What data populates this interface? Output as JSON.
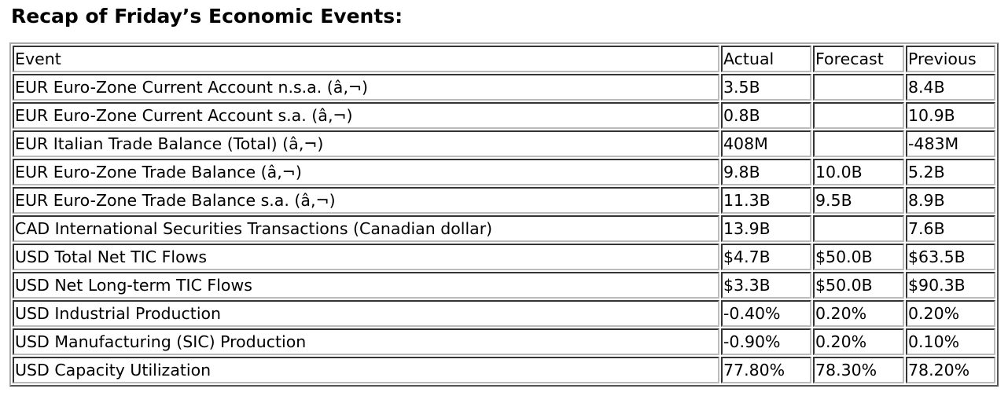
{
  "title": "Recap of Friday’s Economic Events:",
  "headers": {
    "event": "Event",
    "actual": "Actual",
    "forecast": "Forecast",
    "previous": "Previous"
  },
  "rows": [
    {
      "event": "EUR Euro-Zone Current Account n.s.a. (â‚¬)",
      "actual": "3.5B",
      "forecast": "",
      "previous": "8.4B"
    },
    {
      "event": "EUR Euro-Zone Current Account s.a. (â‚¬)",
      "actual": "0.8B",
      "forecast": "",
      "previous": "10.9B"
    },
    {
      "event": "EUR Italian Trade Balance (Total) (â‚¬)",
      "actual": "408M",
      "forecast": "",
      "previous": "-483M"
    },
    {
      "event": "EUR Euro-Zone Trade Balance (â‚¬)",
      "actual": "9.8B",
      "forecast": "10.0B",
      "previous": "5.2B"
    },
    {
      "event": "EUR Euro-Zone Trade Balance s.a. (â‚¬)",
      "actual": "11.3B",
      "forecast": "9.5B",
      "previous": "8.9B"
    },
    {
      "event": "CAD International Securities Transactions (Canadian dollar)",
      "actual": "13.9B",
      "forecast": "",
      "previous": "7.6B"
    },
    {
      "event": "USD Total Net TIC Flows",
      "actual": "$4.7B",
      "forecast": "$50.0B",
      "previous": "$63.5B"
    },
    {
      "event": "USD Net Long-term TIC Flows",
      "actual": "$3.3B",
      "forecast": "$50.0B",
      "previous": "$90.3B"
    },
    {
      "event": "USD Industrial Production",
      "actual": "-0.40%",
      "forecast": "0.20%",
      "previous": "0.20%"
    },
    {
      "event": "USD Manufacturing (SIC) Production",
      "actual": "-0.90%",
      "forecast": "0.20%",
      "previous": "0.10%"
    },
    {
      "event": "USD Capacity Utilization",
      "actual": "77.80%",
      "forecast": "78.30%",
      "previous": "78.20%"
    }
  ]
}
